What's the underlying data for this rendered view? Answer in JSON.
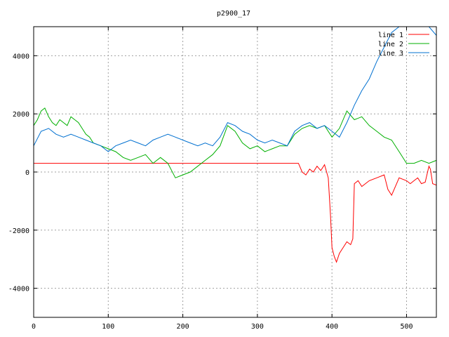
{
  "chart_data": {
    "type": "line",
    "title": "p2900_17",
    "xlabel": "",
    "ylabel": "",
    "xlim": [
      0,
      540
    ],
    "ylim": [
      -5000,
      5000
    ],
    "xticks": [
      0,
      100,
      200,
      300,
      400,
      500
    ],
    "yticks": [
      -4000,
      -2000,
      0,
      2000,
      4000
    ],
    "grid": true,
    "legend_position": "top-right",
    "series": [
      {
        "name": "line 1",
        "color": "#ff0000",
        "x": [
          0,
          100,
          200,
          300,
          355,
          360,
          365,
          370,
          375,
          380,
          385,
          390,
          395,
          398,
          400,
          403,
          406,
          410,
          415,
          420,
          425,
          428,
          430,
          435,
          440,
          450,
          460,
          470,
          475,
          480,
          490,
          500,
          505,
          510,
          515,
          520,
          525,
          530,
          532,
          535,
          540
        ],
        "y": [
          300,
          300,
          300,
          300,
          300,
          0,
          -100,
          100,
          0,
          200,
          50,
          250,
          -200,
          -1500,
          -2600,
          -2900,
          -3100,
          -2800,
          -2600,
          -2400,
          -2500,
          -2300,
          -400,
          -300,
          -500,
          -300,
          -200,
          -100,
          -600,
          -800,
          -200,
          -300,
          -400,
          -300,
          -200,
          -400,
          -350,
          200,
          100,
          -400,
          -450
        ]
      },
      {
        "name": "line 2",
        "color": "#00b000",
        "x": [
          0,
          5,
          10,
          15,
          20,
          25,
          30,
          35,
          40,
          45,
          50,
          55,
          60,
          65,
          70,
          75,
          80,
          90,
          100,
          110,
          120,
          130,
          140,
          150,
          160,
          170,
          180,
          190,
          200,
          210,
          220,
          230,
          240,
          250,
          260,
          270,
          280,
          290,
          300,
          310,
          320,
          330,
          340,
          350,
          360,
          370,
          380,
          390,
          400,
          410,
          420,
          430,
          440,
          450,
          460,
          470,
          480,
          490,
          500,
          510,
          520,
          530,
          540
        ],
        "y": [
          1600,
          1800,
          2100,
          2200,
          1900,
          1700,
          1600,
          1800,
          1700,
          1600,
          1900,
          1800,
          1700,
          1500,
          1300,
          1200,
          1000,
          900,
          800,
          700,
          500,
          400,
          500,
          600,
          300,
          500,
          300,
          -200,
          -100,
          0,
          200,
          400,
          600,
          900,
          1600,
          1400,
          1000,
          800,
          900,
          700,
          800,
          900,
          900,
          1300,
          1500,
          1600,
          1500,
          1600,
          1200,
          1500,
          2100,
          1800,
          1900,
          1600,
          1400,
          1200,
          1100,
          700,
          300,
          300,
          400,
          300,
          400
        ]
      },
      {
        "name": "line 3",
        "color": "#0070d0",
        "x": [
          0,
          10,
          20,
          30,
          40,
          50,
          60,
          70,
          80,
          90,
          100,
          110,
          120,
          130,
          140,
          150,
          160,
          170,
          180,
          190,
          200,
          210,
          220,
          230,
          240,
          250,
          260,
          270,
          280,
          290,
          300,
          310,
          320,
          330,
          340,
          350,
          360,
          370,
          380,
          390,
          400,
          410,
          420,
          425,
          430,
          440,
          450,
          460,
          470,
          480,
          490,
          500,
          510,
          520,
          530,
          540
        ],
        "y": [
          900,
          1400,
          1500,
          1300,
          1200,
          1300,
          1200,
          1100,
          1000,
          900,
          700,
          900,
          1000,
          1100,
          1000,
          900,
          1100,
          1200,
          1300,
          1200,
          1100,
          1000,
          900,
          1000,
          900,
          1200,
          1700,
          1600,
          1400,
          1300,
          1100,
          1000,
          1100,
          1000,
          900,
          1400,
          1600,
          1700,
          1500,
          1600,
          1400,
          1200,
          1700,
          2000,
          2300,
          2800,
          3200,
          3800,
          4300,
          4800,
          5000,
          5000,
          5000,
          5000,
          5000,
          4700
        ]
      }
    ]
  }
}
